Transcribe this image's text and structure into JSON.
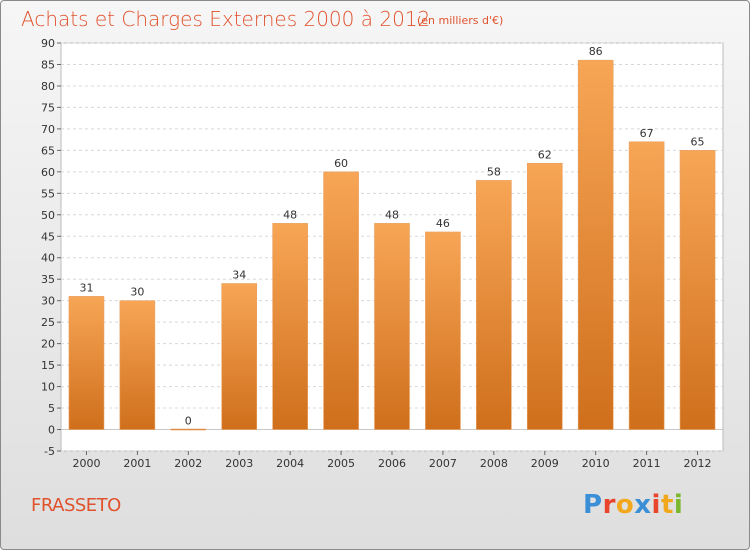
{
  "header": {
    "title": "Achats et Charges Externes 2000 à 2012",
    "subtitle": "(en milliers d'€)"
  },
  "footer": {
    "city": "FRASSETO",
    "logo_text": "Proxiti",
    "logo_colors": [
      "#3a8fd6",
      "#e8452c",
      "#f2a81d",
      "#3a8fd6",
      "#e8452c",
      "#f2a81d",
      "#7cb82f"
    ]
  },
  "chart_data": {
    "type": "bar",
    "title": "Achats et Charges Externes 2000 à 2012",
    "subtitle": "(en milliers d'€)",
    "categories": [
      "2000",
      "2001",
      "2002",
      "2003",
      "2004",
      "2005",
      "2006",
      "2007",
      "2008",
      "2009",
      "2010",
      "2011",
      "2012"
    ],
    "values": [
      31,
      30,
      0,
      34,
      48,
      60,
      48,
      46,
      58,
      62,
      86,
      67,
      65
    ],
    "xlabel": "",
    "ylabel": "",
    "ylim": [
      -5,
      90
    ],
    "yticks": [
      -5,
      0,
      5,
      10,
      15,
      20,
      25,
      30,
      35,
      40,
      45,
      50,
      55,
      60,
      65,
      70,
      75,
      80,
      85,
      90
    ],
    "grid": true,
    "bar_color_top": "#f7a656",
    "bar_color_bottom": "#cf6f1c"
  }
}
